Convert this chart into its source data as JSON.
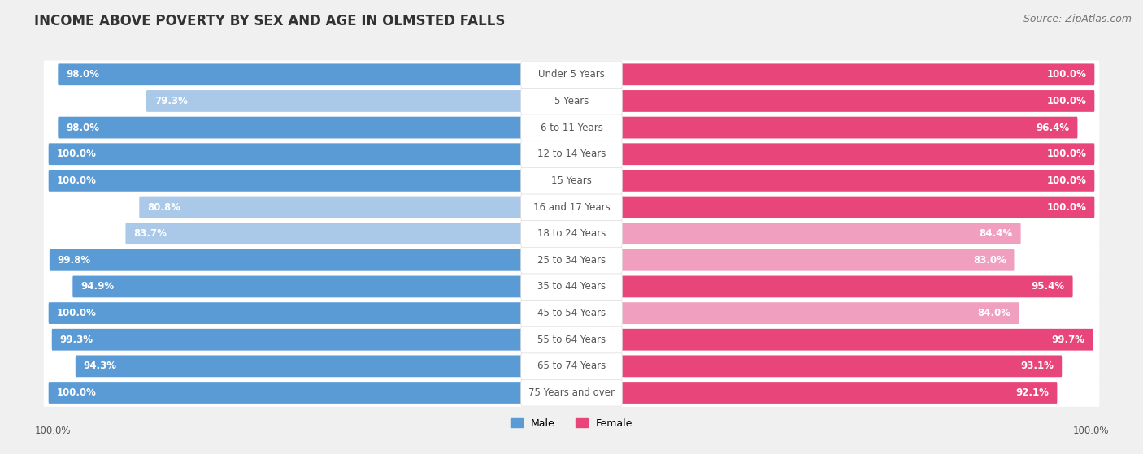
{
  "title": "INCOME ABOVE POVERTY BY SEX AND AGE IN OLMSTED FALLS",
  "source": "Source: ZipAtlas.com",
  "categories": [
    "Under 5 Years",
    "5 Years",
    "6 to 11 Years",
    "12 to 14 Years",
    "15 Years",
    "16 and 17 Years",
    "18 to 24 Years",
    "25 to 34 Years",
    "35 to 44 Years",
    "45 to 54 Years",
    "55 to 64 Years",
    "65 to 74 Years",
    "75 Years and over"
  ],
  "male_values": [
    98.0,
    79.3,
    98.0,
    100.0,
    100.0,
    80.8,
    83.7,
    99.8,
    94.9,
    100.0,
    99.3,
    94.3,
    100.0
  ],
  "female_values": [
    100.0,
    100.0,
    96.4,
    100.0,
    100.0,
    100.0,
    84.4,
    83.0,
    95.4,
    84.0,
    99.7,
    93.1,
    92.1
  ],
  "male_color_high": "#5b9bd5",
  "male_color_low": "#aac8e8",
  "female_color_high": "#e8457a",
  "female_color_low": "#f0a0be",
  "bg_color": "#f0f0f0",
  "row_bg_color": "#ffffff",
  "label_pill_color": "#ffffff",
  "label_text_color": "#555555",
  "legend_male_label": "Male",
  "legend_female_label": "Female",
  "bottom_label": "100.0%",
  "title_fontsize": 12,
  "value_fontsize": 8.5,
  "cat_fontsize": 8.5,
  "source_fontsize": 9
}
